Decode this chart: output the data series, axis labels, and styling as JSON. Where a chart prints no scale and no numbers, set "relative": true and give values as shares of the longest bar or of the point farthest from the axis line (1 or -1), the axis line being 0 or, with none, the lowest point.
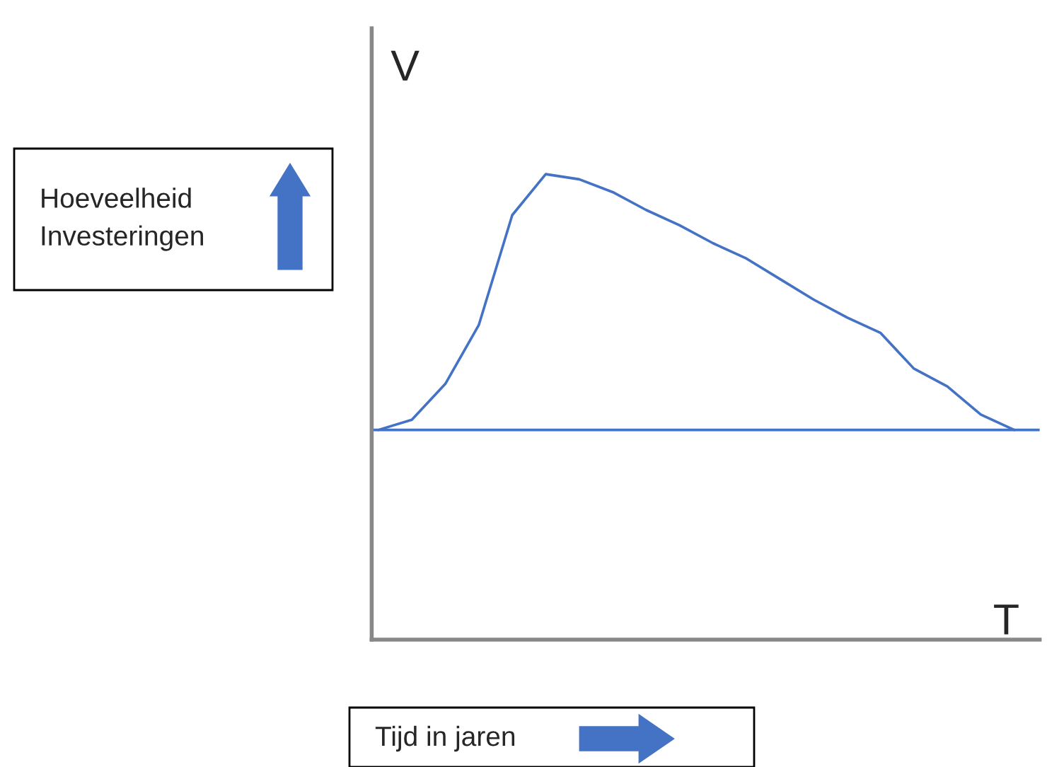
{
  "chart_data": {
    "type": "line",
    "relative": true,
    "xlabel": "T",
    "ylabel": "V",
    "categories": [
      null,
      null,
      null,
      null,
      null,
      null,
      null,
      null,
      null,
      null,
      null,
      null,
      null,
      null,
      null,
      null,
      null,
      null,
      null,
      null
    ],
    "series": [
      {
        "color": "#4472c4",
        "values": [
          0,
          0.04,
          0.18,
          0.41,
          0.84,
          1.0,
          0.98,
          0.93,
          0.86,
          0.8,
          0.73,
          0.67,
          0.59,
          0.51,
          0.44,
          0.38,
          0.24,
          0.17,
          0.06,
          0
        ]
      }
    ],
    "ref_lines": [
      {
        "axis": "y",
        "value": 0,
        "color": "#4472c4"
      }
    ],
    "annotations": [
      "Hoeveelheid\nInvesteringen",
      "Tijd in jaren"
    ],
    "legend": false,
    "marker": "none",
    "line_style": "solid"
  }
}
